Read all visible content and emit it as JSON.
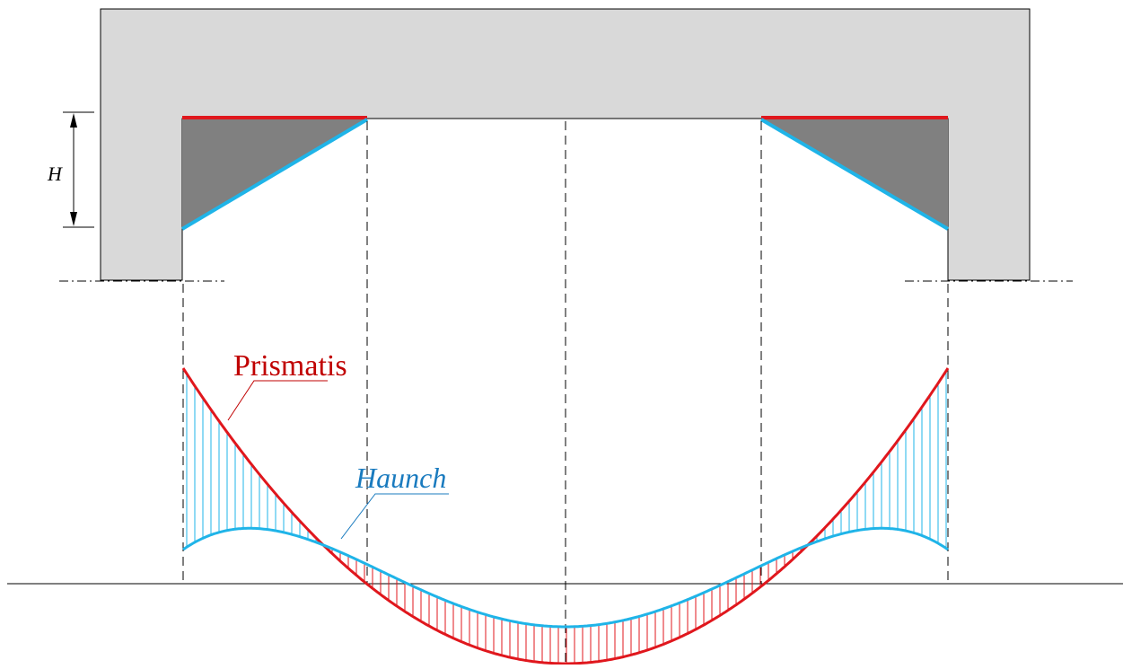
{
  "labels": {
    "dimension": "H",
    "prismatic": "Prismatis",
    "haunch": "Haunch"
  },
  "colors": {
    "frame_fill": "#d9d9d9",
    "haunch_fill": "#808080",
    "prismatic": "#e0171d",
    "haunch": "#1fb4e8",
    "haunch_label": "#1a7bbf",
    "prismatic_label": "#c00000",
    "line": "#000000"
  }
}
